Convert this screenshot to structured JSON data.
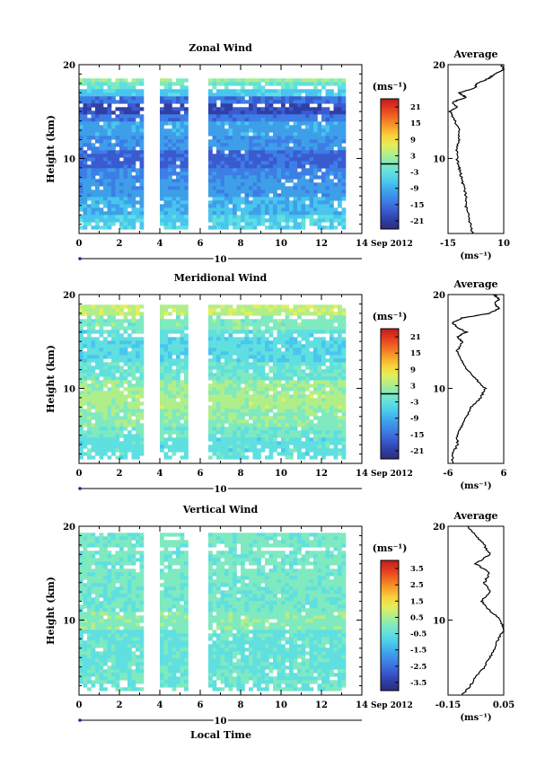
{
  "figure": {
    "xlabel": "Local Time",
    "date_label": "Sep 2012",
    "day_label": "10",
    "ylabel": "Height (km)",
    "unit_label": "(ms⁻¹)",
    "avg_title": "Average",
    "colormap": [
      "#2c2c7e",
      "#2f3fa6",
      "#3a5bd0",
      "#3d7ee6",
      "#3e9fe9",
      "#49c5ee",
      "#5fdfe0",
      "#7fe9c0",
      "#b0ee8a",
      "#e5ee5a",
      "#f8d23a",
      "#f7a02a",
      "#f06a23",
      "#e23a1f",
      "#c01d1d"
    ]
  },
  "chart_data": [
    {
      "type": "heatmap",
      "title": "Zonal Wind",
      "xlim": [
        0,
        14
      ],
      "ylim": [
        2,
        20
      ],
      "x_ticks": [
        0,
        2,
        4,
        6,
        8,
        10,
        12,
        14
      ],
      "y_ticks": [
        10,
        20
      ],
      "data_gaps_hours": [
        [
          3.1,
          3.9
        ],
        [
          5.4,
          6.2
        ]
      ],
      "data_end_hour": 13.2,
      "colorbar": {
        "ticks": [
          21,
          15,
          9,
          3,
          -3,
          -9,
          -15,
          -21
        ],
        "range": [
          -24,
          24
        ],
        "zero_line": true
      },
      "layers": [
        {
          "from": 2.5,
          "to": 4.0,
          "value": -5
        },
        {
          "from": 4.0,
          "to": 6.0,
          "value": -8
        },
        {
          "from": 6.0,
          "to": 8.0,
          "value": -10
        },
        {
          "from": 8.0,
          "to": 9.0,
          "value": -12
        },
        {
          "from": 9.0,
          "to": 11.0,
          "value": -15
        },
        {
          "from": 11.0,
          "to": 12.5,
          "value": -11
        },
        {
          "from": 12.5,
          "to": 14.0,
          "value": -9
        },
        {
          "from": 14.0,
          "to": 15.0,
          "value": -13
        },
        {
          "from": 15.0,
          "to": 16.0,
          "value": -18
        },
        {
          "from": 16.0,
          "to": 16.8,
          "value": -14
        },
        {
          "from": 16.8,
          "to": 17.6,
          "value": -6
        },
        {
          "from": 17.6,
          "to": 18.3,
          "value": -2
        },
        {
          "from": 18.3,
          "to": 18.8,
          "value": 2
        }
      ],
      "average": {
        "xlim": [
          -15,
          10
        ],
        "x_ticks": [
          -15,
          10
        ],
        "y_ticks": [
          10,
          20
        ],
        "height": [
          2,
          3,
          4,
          5,
          6,
          7,
          8,
          9,
          10,
          11,
          12,
          13,
          14,
          15,
          15.5,
          16,
          16.5,
          17,
          17.5,
          18,
          18.5,
          19,
          19.5,
          20
        ],
        "value": [
          -4,
          -5,
          -6,
          -7,
          -7,
          -8,
          -9,
          -10,
          -11,
          -11,
          -10,
          -10,
          -12,
          -14,
          -11,
          -13,
          -7,
          -10,
          -3,
          -2,
          3,
          6,
          10,
          9
        ]
      }
    },
    {
      "type": "heatmap",
      "title": "Meridional Wind",
      "xlim": [
        0,
        14
      ],
      "ylim": [
        2,
        20
      ],
      "x_ticks": [
        0,
        2,
        4,
        6,
        8,
        10,
        12,
        14
      ],
      "y_ticks": [
        10,
        20
      ],
      "data_gaps_hours": [
        [
          3.1,
          3.9
        ],
        [
          5.4,
          6.2
        ]
      ],
      "data_end_hour": 13.2,
      "colorbar": {
        "ticks": [
          21,
          15,
          9,
          3,
          -3,
          -9,
          -15,
          -21
        ],
        "range": [
          -24,
          24
        ],
        "zero_line": true
      },
      "layers": [
        {
          "from": 2.5,
          "to": 5.0,
          "value": -3
        },
        {
          "from": 5.0,
          "to": 6.0,
          "value": -1
        },
        {
          "from": 6.0,
          "to": 8.0,
          "value": 1
        },
        {
          "from": 8.0,
          "to": 9.5,
          "value": 3
        },
        {
          "from": 9.5,
          "to": 11.0,
          "value": 2
        },
        {
          "from": 11.0,
          "to": 13.0,
          "value": -2
        },
        {
          "from": 13.0,
          "to": 15.5,
          "value": -4
        },
        {
          "from": 15.5,
          "to": 16.5,
          "value": -3
        },
        {
          "from": 16.5,
          "to": 18.0,
          "value": 0
        },
        {
          "from": 18.0,
          "to": 19.0,
          "value": 4
        }
      ],
      "average": {
        "xlim": [
          -6,
          6
        ],
        "x_ticks": [
          -6,
          6
        ],
        "y_ticks": [
          10,
          20
        ],
        "height": [
          2,
          3,
          4,
          5,
          6,
          7,
          8,
          9,
          10,
          11,
          12,
          13,
          14,
          15,
          15.5,
          16,
          16.5,
          17,
          17.5,
          18,
          18.5,
          19,
          19.5,
          20
        ],
        "value": [
          -5,
          -5,
          -4,
          -4,
          -3,
          -2,
          -1,
          1,
          2,
          0,
          -2,
          -3,
          -4,
          -3,
          -4,
          -2,
          -4,
          -5,
          -3,
          3,
          5,
          4,
          5,
          4
        ]
      }
    },
    {
      "type": "heatmap",
      "title": "Vertical Wind",
      "xlim": [
        0,
        14
      ],
      "ylim": [
        2,
        20
      ],
      "x_ticks": [
        0,
        2,
        4,
        6,
        8,
        10,
        12,
        14
      ],
      "y_ticks": [
        10,
        20
      ],
      "data_gaps_hours": [
        [
          3.1,
          3.9
        ],
        [
          5.4,
          6.2
        ]
      ],
      "data_end_hour": 13.2,
      "colorbar": {
        "ticks": [
          3.5,
          2.5,
          1.5,
          0.5,
          -0.5,
          -1.5,
          -2.5,
          -3.5
        ],
        "range": [
          -4,
          4
        ],
        "zero_line": false
      },
      "layers": [
        {
          "from": 2.5,
          "to": 5.0,
          "value": -0.3
        },
        {
          "from": 5.0,
          "to": 9.0,
          "value": -0.4
        },
        {
          "from": 9.0,
          "to": 11.0,
          "value": 0.1
        },
        {
          "from": 11.0,
          "to": 14.0,
          "value": -0.2
        },
        {
          "from": 14.0,
          "to": 20.0,
          "value": -0.1
        }
      ],
      "average": {
        "xlim": [
          -0.15,
          0.05
        ],
        "x_ticks": [
          -0.15,
          0.05
        ],
        "y_ticks": [
          10,
          20
        ],
        "height": [
          2,
          3,
          4,
          5,
          6,
          7,
          8,
          9,
          10,
          11,
          12,
          13,
          14,
          15,
          16,
          17,
          18,
          19,
          20
        ],
        "value": [
          -0.1,
          -0.07,
          -0.05,
          -0.02,
          0.0,
          0.02,
          0.03,
          0.05,
          0.04,
          0.0,
          -0.03,
          0.0,
          -0.02,
          0.0,
          -0.05,
          0.0,
          -0.02,
          -0.05,
          -0.08
        ]
      }
    }
  ]
}
